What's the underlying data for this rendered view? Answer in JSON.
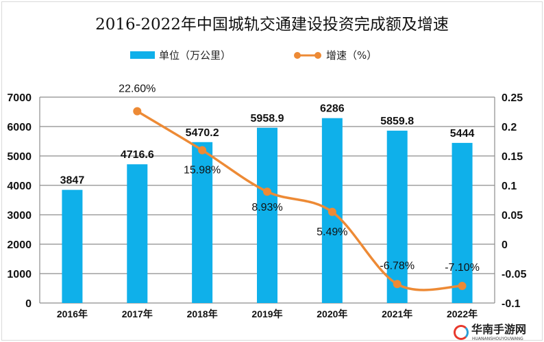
{
  "chart_data": {
    "type": "bar+line",
    "title": "2016-2022年中国城轨交通建设投资完成额及增速",
    "categories": [
      "2016年",
      "2017年",
      "2018年",
      "2019年",
      "2020年",
      "2021年",
      "2022年"
    ],
    "series": [
      {
        "name": "单位（万公里）",
        "type": "bar",
        "axis": "left",
        "color": "#0fb0ea",
        "values": [
          3847,
          4716.6,
          5470.2,
          5958.9,
          6286,
          5859.8,
          5444
        ],
        "labels": [
          "3847",
          "4716.6",
          "5470.2",
          "5958.9",
          "6286",
          "5859.8",
          "5444"
        ]
      },
      {
        "name": "增速（%）",
        "type": "line",
        "axis": "right",
        "color": "#ed8a35",
        "values": [
          null,
          0.226,
          0.1598,
          0.0893,
          0.0549,
          -0.0678,
          -0.071
        ],
        "labels": [
          "",
          "22.60%",
          "15.98%",
          "8.93%",
          "5.49%",
          "-6.78%",
          "-7.10%"
        ]
      }
    ],
    "left_axis": {
      "ylim": [
        0,
        7000
      ],
      "ticks": [
        "0",
        "1000",
        "2000",
        "3000",
        "4000",
        "5000",
        "6000",
        "7000"
      ]
    },
    "right_axis": {
      "ylim": [
        -0.1,
        0.25
      ],
      "ticks": [
        "-0.1",
        "-0.05",
        "0",
        "0.05",
        "0.1",
        "0.15",
        "0.2",
        "0.25"
      ]
    },
    "grid": true,
    "legend": "top"
  },
  "watermark": {
    "text": "华南手游网",
    "subtext": "HUANANSHOUYOUWANG"
  }
}
